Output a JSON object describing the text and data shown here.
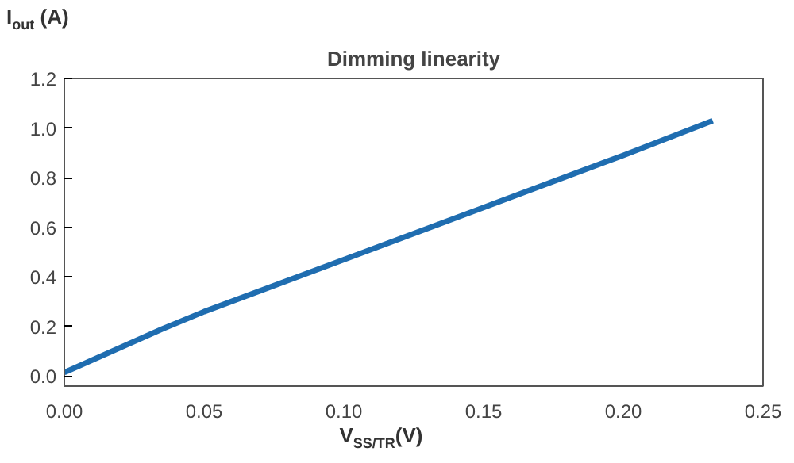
{
  "chart_data": {
    "type": "line",
    "title": "Dimming linearity",
    "xlabel": "V$_{SS/TR}$(V)",
    "ylabel": "I$_{out}$ (A)",
    "x": [
      0,
      0.035,
      0.05,
      0.1,
      0.15,
      0.2,
      0.232
    ],
    "series": [
      {
        "color": "#1f6db0",
        "values": [
          0.015,
          0.19,
          0.26,
          0.47,
          0.68,
          0.89,
          1.03
        ]
      }
    ],
    "xlim": [
      0,
      0.25
    ],
    "xticks": [
      {
        "value": 0,
        "label": "0.00"
      },
      0.05,
      {
        "value": 0.1,
        "label": "0.10"
      },
      0.15,
      {
        "value": 0.2,
        "label": "0.20"
      },
      0.25
    ],
    "ylim": [
      -0.04,
      1.2
    ],
    "yticks": [
      {
        "value": 0,
        "label": "0.0"
      },
      0.2,
      0.4,
      0.6,
      0.8,
      {
        "value": 1,
        "label": "1.0"
      },
      1.2
    ],
    "grid": false,
    "marker": "none",
    "line_style": "solid"
  }
}
